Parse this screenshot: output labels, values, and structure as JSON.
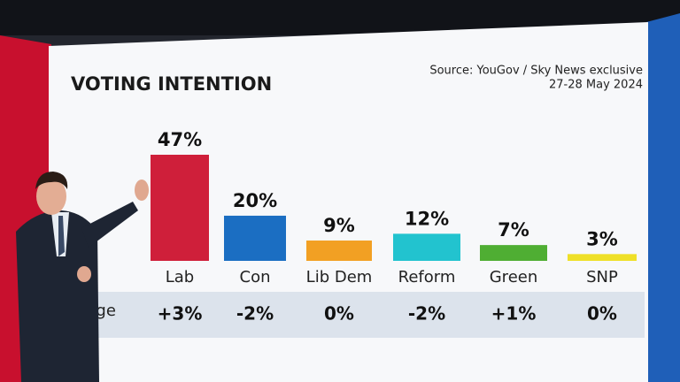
{
  "chart_data": {
    "type": "bar",
    "title": "VOTING INTENTION",
    "source": "Source: YouGov / Sky News exclusive",
    "date": "27-28 May 2024",
    "categories": [
      "Lab",
      "Con",
      "Lib Dem",
      "Reform",
      "Green",
      "SNP"
    ],
    "values": [
      47,
      20,
      9,
      12,
      7,
      3
    ],
    "value_labels": [
      "47%",
      "20%",
      "9%",
      "12%",
      "7%",
      "3%"
    ],
    "colors": [
      "#cf1f3a",
      "#1b6ec2",
      "#f2a023",
      "#22c3cf",
      "#4fae33",
      "#efe028"
    ],
    "change_label": "Change",
    "changes": [
      "+3%",
      "-2%",
      "0%",
      "-2%",
      "+1%",
      "0%"
    ]
  }
}
